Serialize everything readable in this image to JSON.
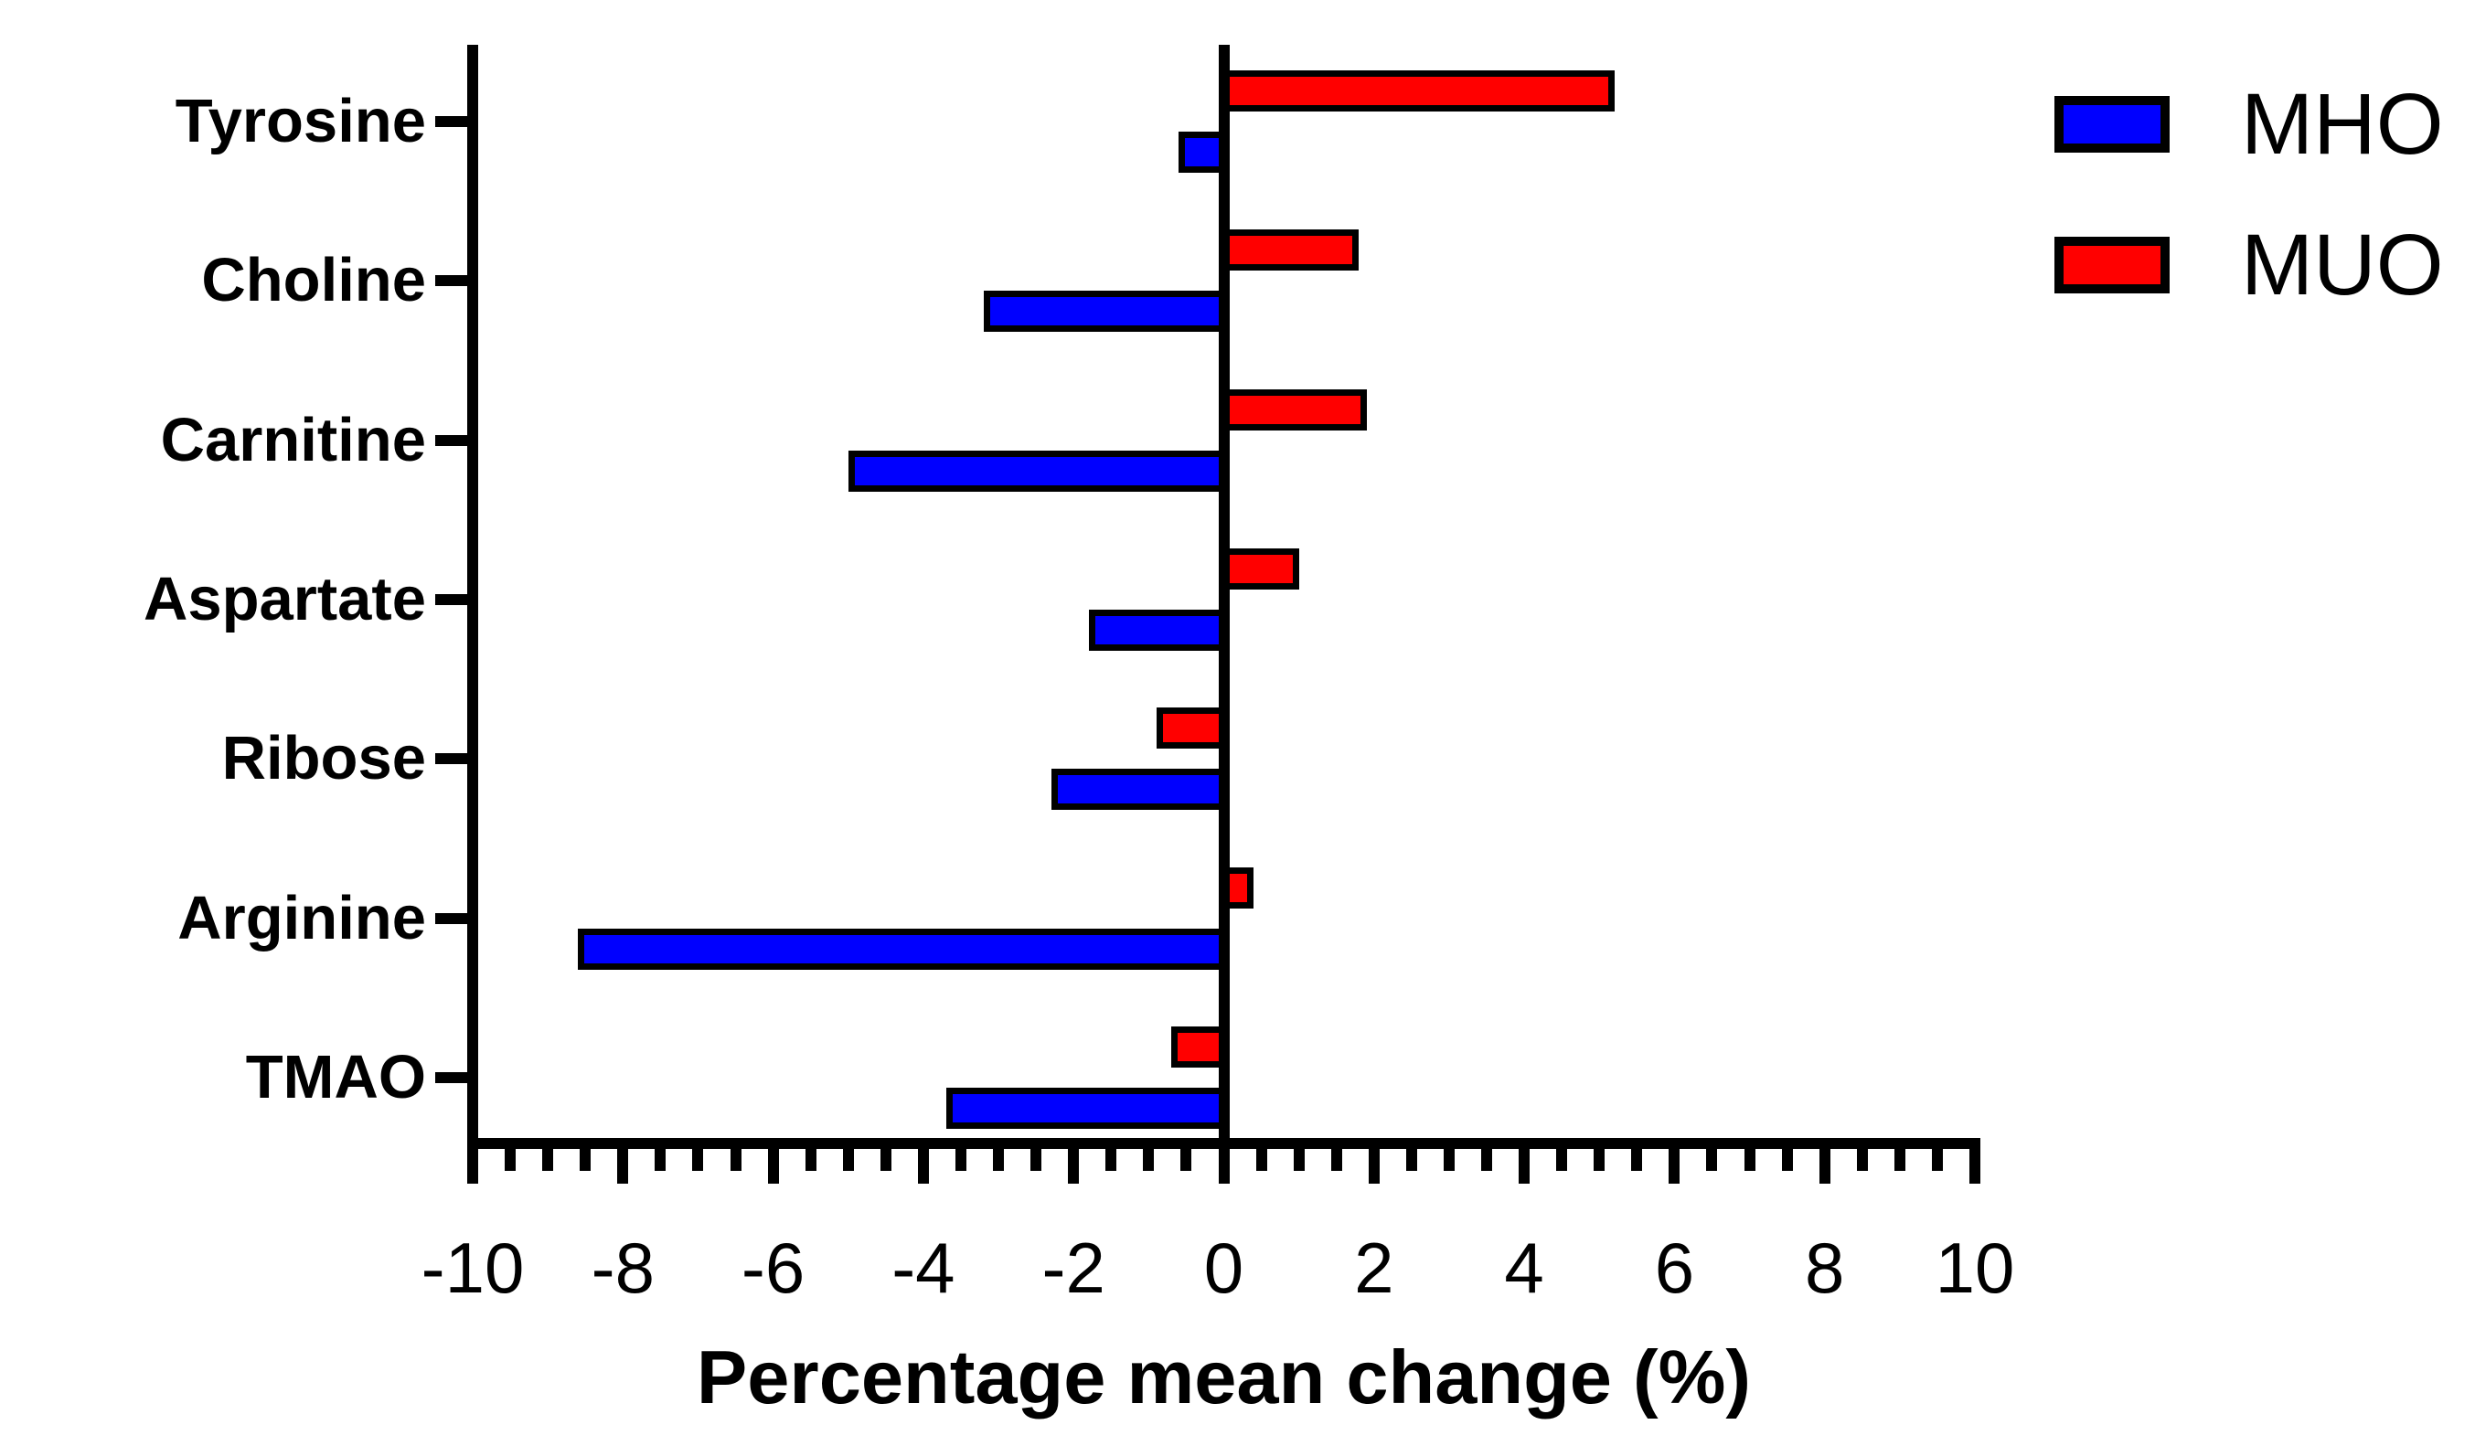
{
  "figure": {
    "background_color": "#FFFFFF",
    "axis_color": "#000000",
    "text_color": "#000000"
  },
  "legend": {
    "position": "top-right",
    "entries": [
      {
        "label": "MHO",
        "color": "#0000FF"
      },
      {
        "label": "MUO",
        "color": "#FF0000"
      }
    ]
  },
  "chart_data": {
    "type": "bar",
    "orientation": "horizontal",
    "title": "",
    "xlabel": "Percentage mean change (%)",
    "ylabel": "",
    "categories": [
      "Tyrosine",
      "Choline",
      "Carnitine",
      "Aspartate",
      "Ribose",
      "Arginine",
      "TMAO"
    ],
    "series": [
      {
        "name": "MHO",
        "color": "#0000FF",
        "values": [
          -0.6,
          -3.2,
          -5.0,
          -1.8,
          -2.3,
          -8.6,
          -3.7
        ]
      },
      {
        "name": "MUO",
        "color": "#FF0000",
        "values": [
          5.2,
          1.8,
          1.9,
          1.0,
          -0.9,
          0.4,
          -0.7
        ]
      }
    ],
    "group_order_top_to_bottom": [
      "MUO",
      "MHO"
    ],
    "xlim": [
      -10,
      10
    ],
    "x_major_tick_step": 2,
    "x_minor_tick_step": 0.5,
    "x_tick_labels": [
      "-10",
      "-8",
      "-6",
      "-4",
      "-2",
      "0",
      "2",
      "4",
      "6",
      "8",
      "10"
    ],
    "grid": false,
    "zero_baseline_drawn": true,
    "legend_position": "top-right"
  }
}
